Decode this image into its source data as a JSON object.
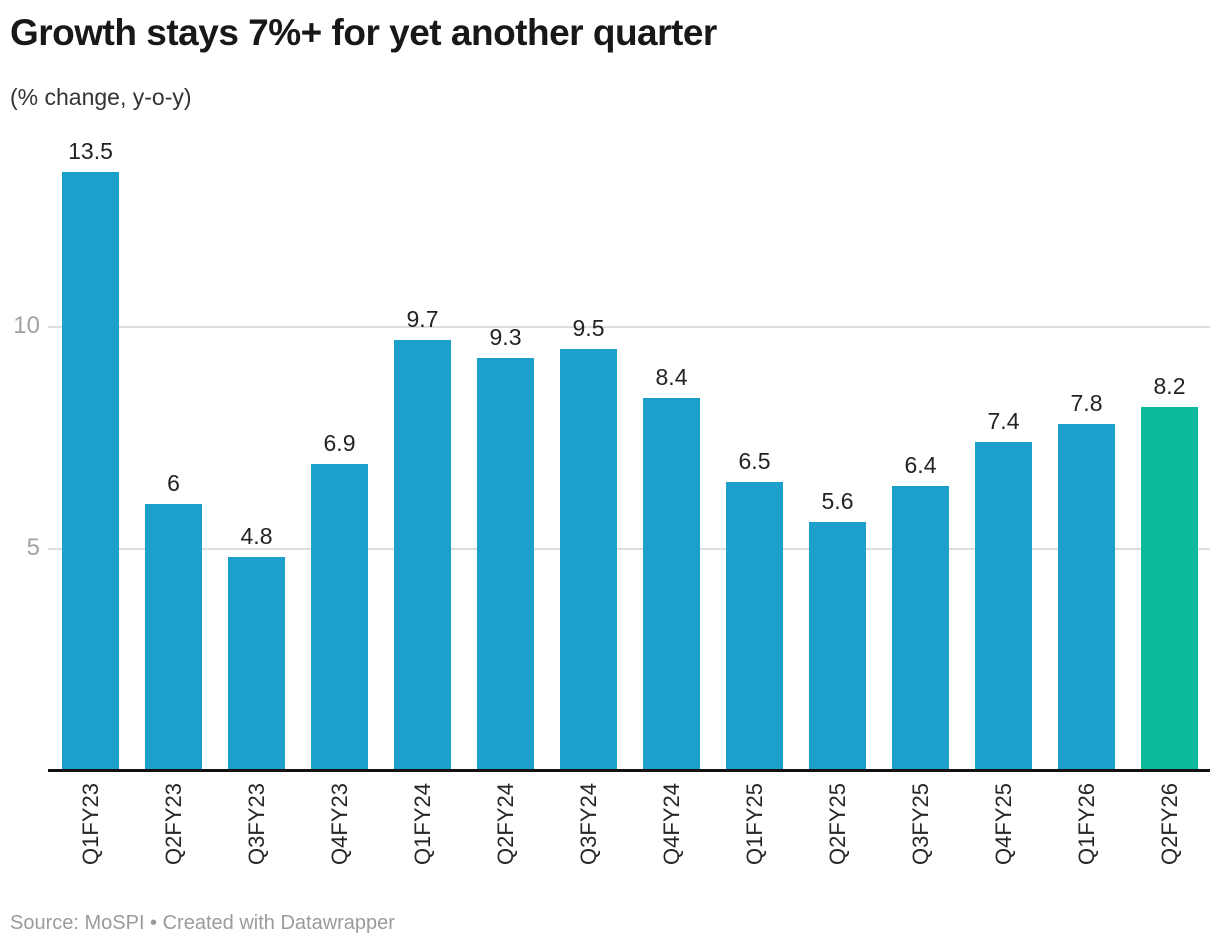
{
  "header": {
    "title": "Growth stays 7%+ for yet another quarter",
    "subtitle": "(% change, y-o-y)"
  },
  "footer": {
    "text": "Source: MoSPI • Created with Datawrapper"
  },
  "chart_data": {
    "type": "bar",
    "title": "Growth stays 7%+ for yet another quarter",
    "subtitle": "(% change, y-o-y)",
    "xlabel": "",
    "ylabel": "",
    "categories": [
      "Q1FY23",
      "Q2FY23",
      "Q3FY23",
      "Q4FY23",
      "Q1FY24",
      "Q2FY24",
      "Q3FY24",
      "Q4FY24",
      "Q1FY25",
      "Q2FY25",
      "Q3FY25",
      "Q4FY25",
      "Q1FY26",
      "Q2FY26"
    ],
    "values": [
      13.5,
      6,
      4.8,
      6.9,
      9.7,
      9.3,
      9.5,
      8.4,
      6.5,
      5.6,
      6.4,
      7.4,
      7.8,
      8.2
    ],
    "value_labels": [
      "13.5",
      "6",
      "4.8",
      "6.9",
      "9.7",
      "9.3",
      "9.5",
      "8.4",
      "6.5",
      "5.6",
      "6.4",
      "7.4",
      "7.8",
      "8.2"
    ],
    "ylim": [
      0,
      14.2
    ],
    "y_gridlines": [
      5,
      10
    ],
    "y_gridline_labels": [
      "5",
      "10"
    ],
    "grid": true,
    "legend": false,
    "bar_color_default": "#1aa0cb",
    "bar_color_highlight": "#0bbb9b",
    "highlight_category": "Q2FY26",
    "highlight_index": 13
  }
}
